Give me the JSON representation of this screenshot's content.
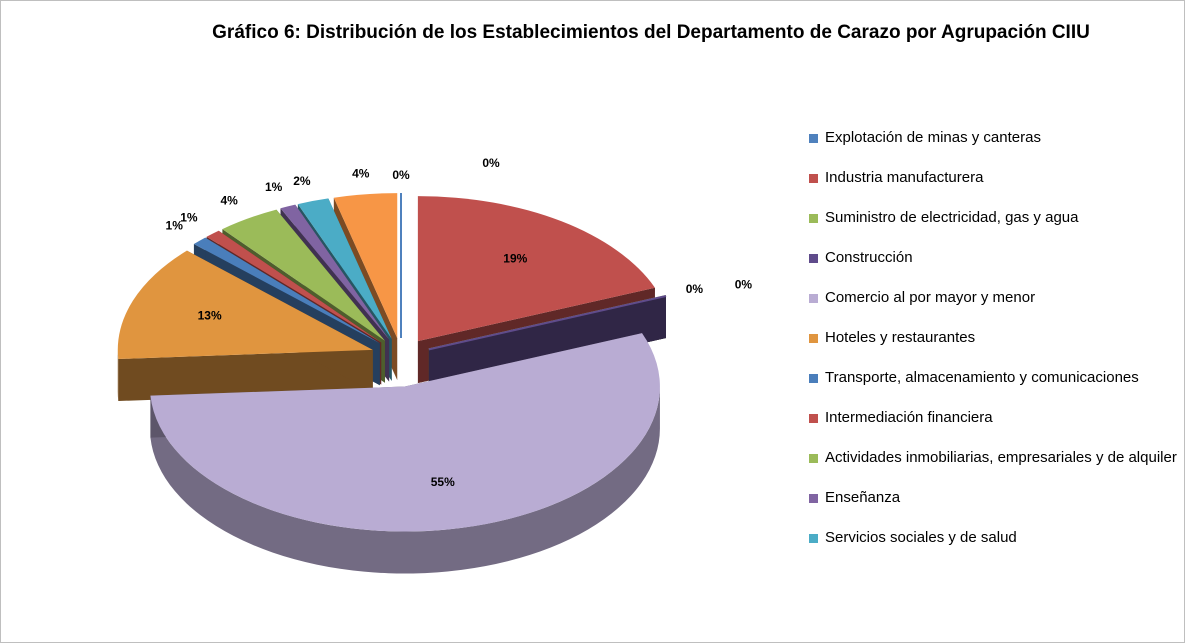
{
  "chart_data": {
    "type": "pie",
    "title": "Gráfico 6: Distribución de los Establecimientos del Departamento de Carazo por Agrupación CIIU",
    "categories": [
      "Explotación de minas y canteras",
      "Industria manufacturera",
      "Suministro de electricidad, gas y agua",
      "Construcción",
      "Comercio al por mayor y menor",
      "Hoteles y restaurantes",
      "Transporte, almacenamiento y comunicaciones",
      "Intermediación financiera",
      "Actividades inmobiliarias, empresariales y de alquiler",
      "Enseñanza",
      "Servicios sociales y de salud",
      null,
      null
    ],
    "values": [
      0,
      19,
      0,
      0,
      55,
      13,
      1,
      1,
      4,
      1,
      2,
      4,
      0
    ],
    "value_labels": [
      "0%",
      "19%",
      "0%",
      "0%",
      "55%",
      "13%",
      "1%",
      "1%",
      "4%",
      "1%",
      "2%",
      "4%",
      "0%"
    ],
    "colors": [
      "#4f81bd",
      "#c0504d",
      "#9bbb59",
      "#5f4b8b",
      "#b9acd3",
      "#e0953f",
      "#4a7ebb",
      "#c0504d",
      "#9bbb59",
      "#8064a2",
      "#4bacc6",
      "#f79646",
      "#4f81bd"
    ]
  }
}
